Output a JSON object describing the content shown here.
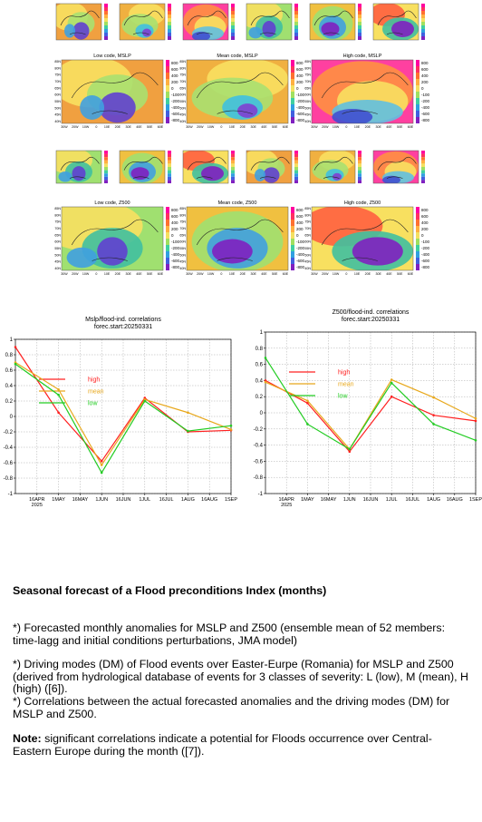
{
  "map_panels": [
    {
      "title": "Low code, MSLP"
    },
    {
      "title": "Mean code, MSLP"
    },
    {
      "title": "High code, MSLP"
    },
    {
      "title": "Low code, Z500"
    },
    {
      "title": "Mean code, Z500"
    },
    {
      "title": "High code, Z500"
    }
  ],
  "lat_labels": [
    "85N",
    "80N",
    "75N",
    "70N",
    "65N",
    "60N",
    "55N",
    "50N",
    "45N",
    "40N"
  ],
  "lon_labels": [
    "30W",
    "20W",
    "10W",
    "0",
    "10E",
    "20E",
    "30E",
    "40E",
    "50E",
    "60E"
  ],
  "colorbar_labels": [
    "800",
    "600",
    "400",
    "200",
    "0",
    "-100",
    "-200",
    "-400",
    "-600",
    "-800"
  ],
  "chart_data": [
    {
      "type": "line",
      "title": "Mslp/flood-ind. correlations",
      "subtitle": "forec.start:20250331",
      "xticks": [
        "16APR",
        "1MAY",
        "16MAY",
        "1JUN",
        "16JUN",
        "1JUL",
        "16JUL",
        "1AUG",
        "16AUG",
        "1SEP"
      ],
      "year_label": "2025",
      "x": [
        null,
        "1MAY",
        "1JUN",
        "1JUL",
        "1AUG",
        "1SEP"
      ],
      "series": [
        {
          "name": "high",
          "color": "#ff2020",
          "values": [
            0.9,
            0.05,
            -0.58,
            0.24,
            -0.2,
            -0.18
          ]
        },
        {
          "name": "mean",
          "color": "#e8a81c",
          "values": [
            0.7,
            0.35,
            -0.63,
            0.22,
            0.05,
            -0.17
          ]
        },
        {
          "name": "low",
          "color": "#22cc22",
          "values": [
            0.68,
            0.28,
            -0.73,
            0.2,
            -0.19,
            -0.12
          ]
        }
      ],
      "ylim": [
        -1,
        1
      ],
      "yticks": [
        -1,
        -0.8,
        -0.6,
        -0.4,
        -0.2,
        0,
        0.2,
        0.4,
        0.6,
        0.8,
        1
      ],
      "grid": true
    },
    {
      "type": "line",
      "title": "Z500/flood-ind. correlations",
      "subtitle": "forec.start:20250331",
      "xticks": [
        "16APR",
        "1MAY",
        "16MAY",
        "1JUN",
        "16JUN",
        "1JUL",
        "16JUL",
        "1AUG",
        "16AUG",
        "1SEP"
      ],
      "year_label": "2025",
      "x": [
        null,
        "1MAY",
        "1JUN",
        "1JUL",
        "1AUG",
        "1SEP"
      ],
      "series": [
        {
          "name": "high",
          "color": "#ff2020",
          "values": [
            0.4,
            0.12,
            -0.48,
            0.2,
            -0.03,
            -0.1
          ]
        },
        {
          "name": "mean",
          "color": "#e8a81c",
          "values": [
            0.38,
            0.15,
            -0.45,
            0.41,
            0.19,
            -0.07
          ]
        },
        {
          "name": "low",
          "color": "#22cc22",
          "values": [
            0.68,
            -0.14,
            -0.45,
            0.37,
            -0.14,
            -0.34
          ]
        }
      ],
      "ylim": [
        -1,
        1
      ],
      "yticks": [
        -1,
        -0.8,
        -0.6,
        -0.4,
        -0.2,
        0,
        0.2,
        0.4,
        0.6,
        0.8,
        1
      ],
      "grid": true
    }
  ],
  "text": {
    "heading": "Seasonal forecast of a Flood preconditions Index (months)",
    "paragraphs": [
      "*) Forecasted monthly anomalies for MSLP and Z500 (ensemble mean of 52 members: time-lagg and initial conditions perturbations, JMA model)",
      "*) Driving modes (DM) of Flood events over Easter-Eurpe (Romania) for MSLP and Z500 (derived from hydrological database of events for 3 classes of severity: L (low), M (mean), H (high) ([6]).",
      "*) Correlations between the actual forecasted anomalies and the driving modes (DM) for MSLP and Z500."
    ],
    "note": {
      "label": "Note:",
      "text": "significant correlations indicate a potential for Floods occurrence over Central-Eastern Europe during the month ([7])."
    }
  }
}
